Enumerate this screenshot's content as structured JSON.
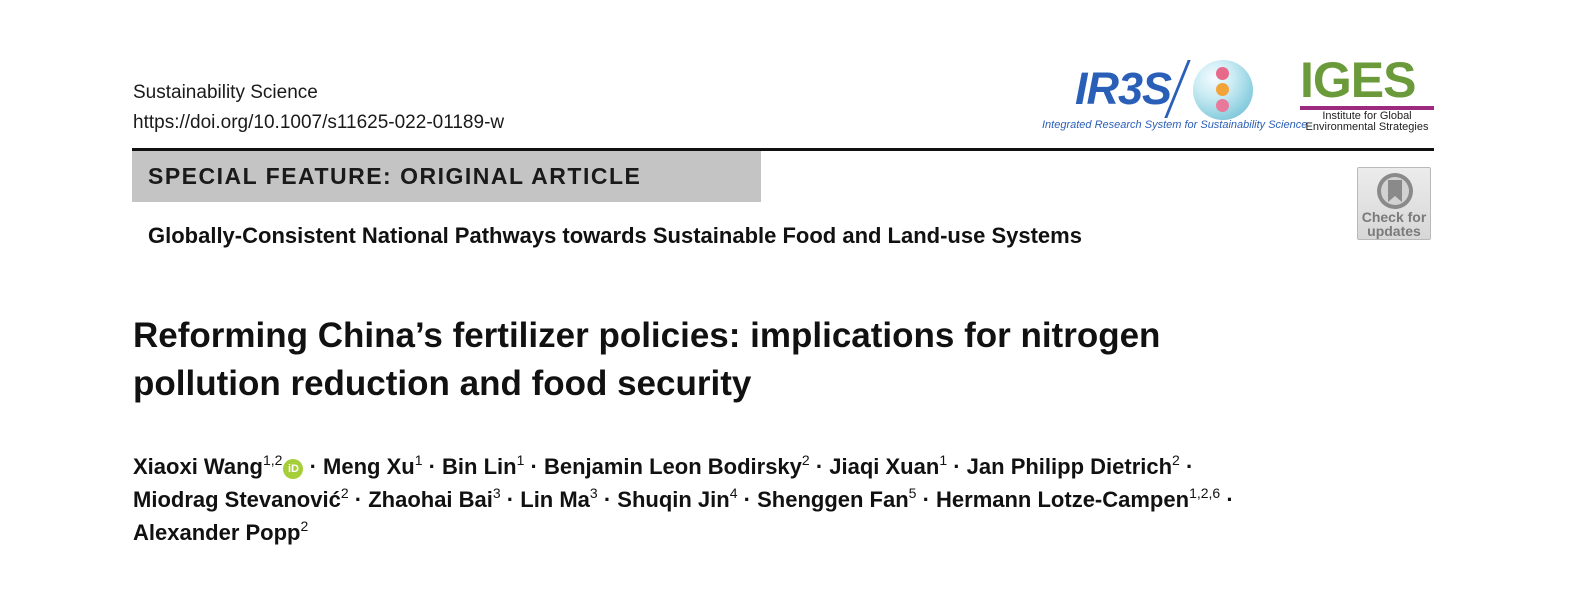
{
  "journal": {
    "name": "Sustainability Science",
    "doi": "https://doi.org/10.1007/s11625-022-01189-w"
  },
  "logos": {
    "ir3s": {
      "text": "IR3S",
      "caption": "Integrated Research System for Sustainability Science",
      "color": "#2a5fb8"
    },
    "iges": {
      "text": "IGES",
      "caption_line1": "Institute for Global",
      "caption_line2": "Environmental Strategies",
      "color": "#6b9a3a",
      "bar_color": "#9c2a7e"
    }
  },
  "feature": {
    "label": "SPECIAL FEATURE: ORIGINAL ARTICLE",
    "collection": "Globally-Consistent National Pathways towards Sustainable Food and Land-use Systems"
  },
  "check_updates": {
    "line1": "Check for",
    "line2": "updates"
  },
  "article": {
    "title_line1": "Reforming China’s fertilizer policies: implications for nitrogen",
    "title_line2": "pollution reduction and food security"
  },
  "authors": [
    {
      "name": "Xiaoxi Wang",
      "aff": "1,2",
      "orcid": "iD"
    },
    {
      "name": "Meng Xu",
      "aff": "1"
    },
    {
      "name": "Bin Lin",
      "aff": "1"
    },
    {
      "name": "Benjamin Leon Bodirsky",
      "aff": "2"
    },
    {
      "name": "Jiaqi Xuan",
      "aff": "1"
    },
    {
      "name": "Jan Philipp Dietrich",
      "aff": "2"
    },
    {
      "name": "Miodrag Stevanović",
      "aff": "2"
    },
    {
      "name": "Zhaohai Bai",
      "aff": "3"
    },
    {
      "name": "Lin Ma",
      "aff": "3"
    },
    {
      "name": "Shuqin Jin",
      "aff": "4"
    },
    {
      "name": "Shenggen Fan",
      "aff": "5"
    },
    {
      "name": "Hermann Lotze-Campen",
      "aff": "1,2,6"
    },
    {
      "name": "Alexander Popp",
      "aff": "2"
    }
  ],
  "author_separator": " · ",
  "colors": {
    "feature_box": "#c4c4c4",
    "orcid": "#a6ce39",
    "text": "#111111"
  }
}
